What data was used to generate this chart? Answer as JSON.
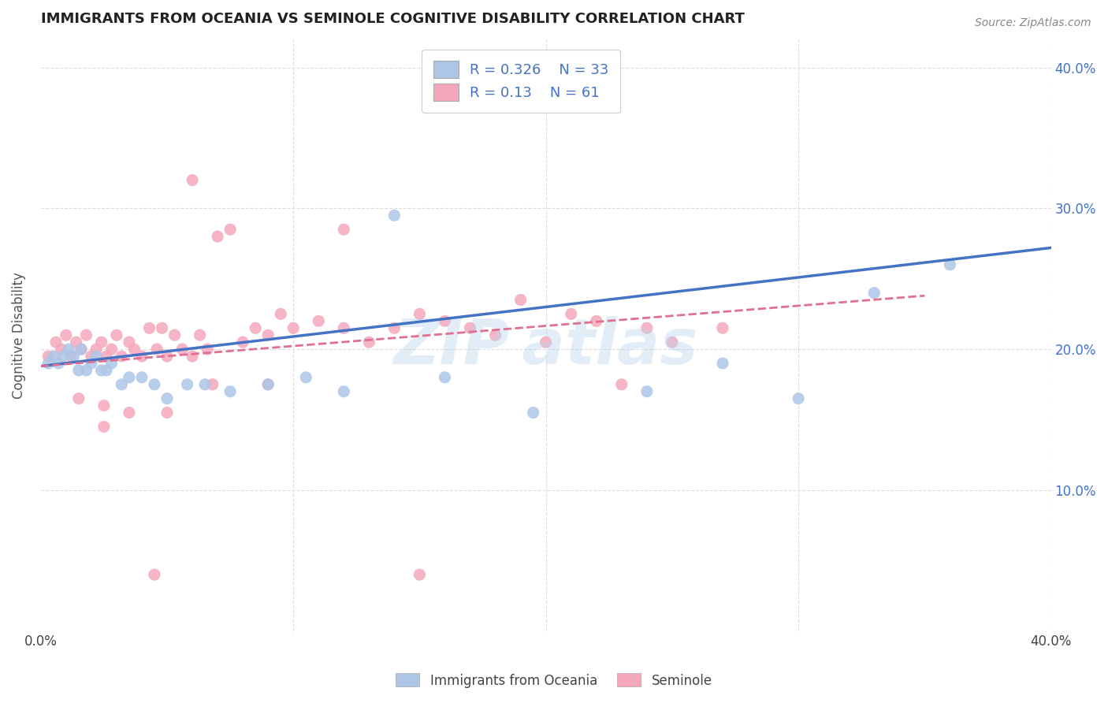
{
  "title": "IMMIGRANTS FROM OCEANIA VS SEMINOLE COGNITIVE DISABILITY CORRELATION CHART",
  "source": "Source: ZipAtlas.com",
  "ylabel": "Cognitive Disability",
  "xlim": [
    0.0,
    0.4
  ],
  "ylim": [
    0.0,
    0.42
  ],
  "series1_name": "Immigrants from Oceania",
  "series1_color": "#adc6e8",
  "series1_line_color": "#4472c4",
  "series1_R": 0.326,
  "series1_N": 33,
  "series2_name": "Seminole",
  "series2_color": "#f5a8bc",
  "series2_line_color": "#e07090",
  "series2_R": 0.13,
  "series2_N": 61,
  "legend_text_color": "#4472c4",
  "background_color": "#ffffff",
  "grid_color": "#dddddd",
  "title_color": "#222222",
  "series1_x": [
    0.003,
    0.005,
    0.007,
    0.009,
    0.011,
    0.013,
    0.015,
    0.016,
    0.018,
    0.02,
    0.022,
    0.024,
    0.026,
    0.028,
    0.032,
    0.035,
    0.04,
    0.045,
    0.05,
    0.058,
    0.065,
    0.075,
    0.09,
    0.105,
    0.12,
    0.14,
    0.16,
    0.195,
    0.24,
    0.27,
    0.3,
    0.33,
    0.36
  ],
  "series1_y": [
    0.19,
    0.195,
    0.19,
    0.195,
    0.2,
    0.195,
    0.185,
    0.2,
    0.185,
    0.19,
    0.195,
    0.185,
    0.185,
    0.19,
    0.175,
    0.18,
    0.18,
    0.175,
    0.165,
    0.175,
    0.175,
    0.17,
    0.175,
    0.18,
    0.17,
    0.295,
    0.18,
    0.155,
    0.17,
    0.19,
    0.165,
    0.24,
    0.26
  ],
  "series2_x": [
    0.003,
    0.006,
    0.008,
    0.01,
    0.012,
    0.014,
    0.016,
    0.018,
    0.02,
    0.022,
    0.024,
    0.026,
    0.028,
    0.03,
    0.032,
    0.035,
    0.037,
    0.04,
    0.043,
    0.046,
    0.048,
    0.05,
    0.053,
    0.056,
    0.06,
    0.063,
    0.066,
    0.07,
    0.075,
    0.08,
    0.085,
    0.09,
    0.095,
    0.1,
    0.11,
    0.12,
    0.13,
    0.14,
    0.15,
    0.16,
    0.17,
    0.18,
    0.19,
    0.2,
    0.21,
    0.22,
    0.23,
    0.24,
    0.25,
    0.27,
    0.015,
    0.025,
    0.035,
    0.05,
    0.068,
    0.09,
    0.12,
    0.15,
    0.025,
    0.045,
    0.06
  ],
  "series2_y": [
    0.195,
    0.205,
    0.2,
    0.21,
    0.195,
    0.205,
    0.2,
    0.21,
    0.195,
    0.2,
    0.205,
    0.195,
    0.2,
    0.21,
    0.195,
    0.205,
    0.2,
    0.195,
    0.215,
    0.2,
    0.215,
    0.195,
    0.21,
    0.2,
    0.195,
    0.21,
    0.2,
    0.28,
    0.285,
    0.205,
    0.215,
    0.21,
    0.225,
    0.215,
    0.22,
    0.215,
    0.205,
    0.215,
    0.225,
    0.22,
    0.215,
    0.21,
    0.235,
    0.205,
    0.225,
    0.22,
    0.175,
    0.215,
    0.205,
    0.215,
    0.165,
    0.16,
    0.155,
    0.155,
    0.175,
    0.175,
    0.285,
    0.04,
    0.145,
    0.04,
    0.32
  ],
  "line1_x0": 0.0,
  "line1_y0": 0.188,
  "line1_x1": 0.4,
  "line1_y1": 0.272,
  "line2_x0": 0.0,
  "line2_y0": 0.188,
  "line2_x1": 0.35,
  "line2_y1": 0.238
}
